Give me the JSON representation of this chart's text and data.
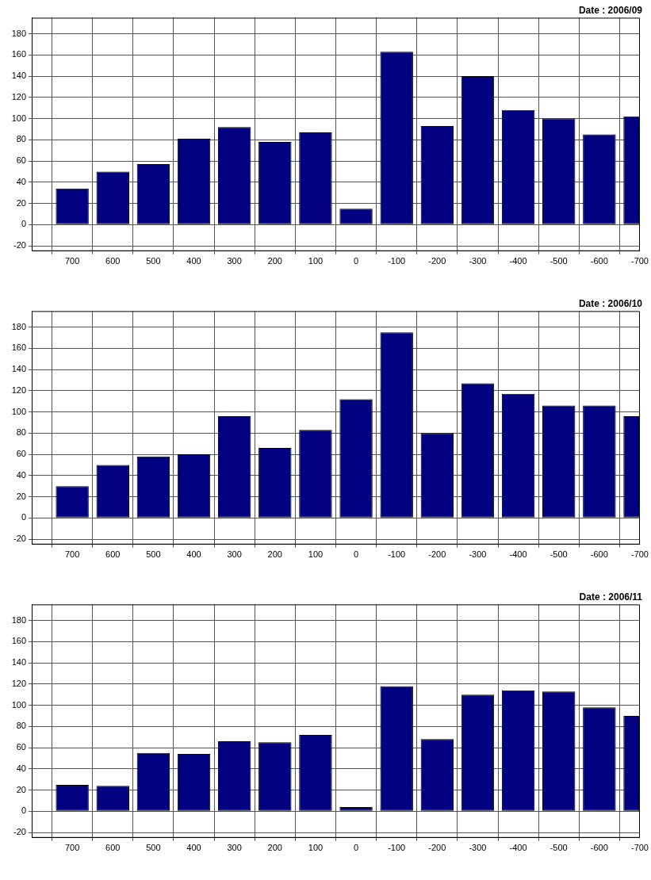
{
  "chart_data": [
    {
      "type": "bar",
      "title": "Date : 2006/09",
      "x": [
        700,
        600,
        500,
        400,
        300,
        200,
        100,
        0,
        -100,
        -200,
        -300,
        -400,
        -500,
        -600,
        -700
      ],
      "values": [
        34,
        50,
        57,
        81,
        92,
        78,
        87,
        15,
        163,
        93,
        140,
        108,
        100,
        85,
        102
      ],
      "color": "#000080",
      "xlim": [
        800,
        -700
      ],
      "xticks": [
        700,
        600,
        500,
        400,
        300,
        200,
        100,
        0,
        -100,
        -200,
        -300,
        -400,
        -500,
        -600,
        -700
      ],
      "ylim": [
        -25,
        195
      ],
      "yticks": [
        -20,
        0,
        20,
        40,
        60,
        80,
        100,
        120,
        140,
        160,
        180
      ],
      "grid": true
    },
    {
      "type": "bar",
      "title": "Date : 2006/10",
      "x": [
        700,
        600,
        500,
        400,
        300,
        200,
        100,
        0,
        -100,
        -200,
        -300,
        -400,
        -500,
        -600,
        -700
      ],
      "values": [
        30,
        50,
        58,
        60,
        96,
        66,
        83,
        112,
        175,
        80,
        127,
        117,
        106,
        106,
        96
      ],
      "color": "#000080",
      "xlim": [
        800,
        -700
      ],
      "xticks": [
        700,
        600,
        500,
        400,
        300,
        200,
        100,
        0,
        -100,
        -200,
        -300,
        -400,
        -500,
        -600,
        -700
      ],
      "ylim": [
        -25,
        195
      ],
      "yticks": [
        -20,
        0,
        20,
        40,
        60,
        80,
        100,
        120,
        140,
        160,
        180
      ],
      "grid": true
    },
    {
      "type": "bar",
      "title": "Date : 2006/11",
      "x": [
        700,
        600,
        500,
        400,
        300,
        200,
        100,
        0,
        -100,
        -200,
        -300,
        -400,
        -500,
        -600,
        -700
      ],
      "values": [
        25,
        24,
        55,
        54,
        66,
        65,
        72,
        4,
        118,
        68,
        110,
        114,
        113,
        98,
        90
      ],
      "color": "#000080",
      "xlim": [
        800,
        -700
      ],
      "xticks": [
        700,
        600,
        500,
        400,
        300,
        200,
        100,
        0,
        -100,
        -200,
        -300,
        -400,
        -500,
        -600,
        -700
      ],
      "ylim": [
        -25,
        195
      ],
      "yticks": [
        -20,
        0,
        20,
        40,
        60,
        80,
        100,
        120,
        140,
        160,
        180
      ],
      "grid": true
    }
  ]
}
